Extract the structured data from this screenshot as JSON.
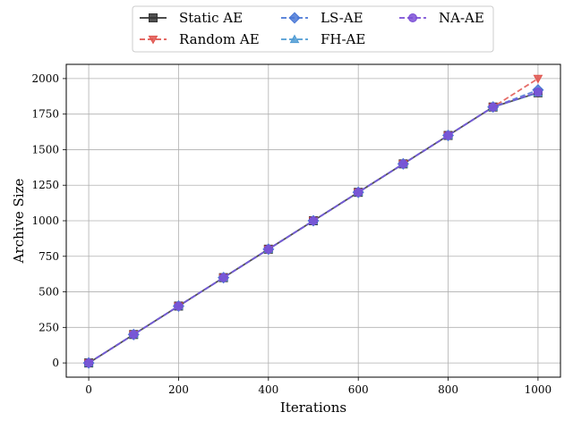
{
  "chart_data": {
    "type": "line",
    "title": "",
    "xlabel": "Iterations",
    "ylabel": "Archive Size",
    "xlim": [
      -50,
      1050
    ],
    "ylim": [
      -100,
      2100
    ],
    "xticks": [
      0,
      200,
      400,
      600,
      800,
      1000
    ],
    "yticks": [
      0,
      250,
      500,
      750,
      1000,
      1250,
      1500,
      1750,
      2000
    ],
    "grid": true,
    "legend_position": "top-center",
    "x": [
      0,
      100,
      200,
      300,
      400,
      500,
      600,
      700,
      800,
      900,
      1000
    ],
    "series": [
      {
        "name": "Static AE",
        "color": "#333333",
        "linestyle": "solid",
        "marker": "square",
        "values": [
          0,
          200,
          400,
          600,
          800,
          1000,
          1200,
          1400,
          1600,
          1800,
          1900
        ]
      },
      {
        "name": "Random AE",
        "color": "#e0544e",
        "linestyle": "dashed",
        "marker": "triangle-down",
        "values": [
          0,
          200,
          400,
          600,
          800,
          1000,
          1200,
          1400,
          1600,
          1800,
          2000
        ]
      },
      {
        "name": "LS-AE",
        "color": "#4a78d6",
        "linestyle": "dashed",
        "marker": "diamond",
        "values": [
          0,
          200,
          400,
          600,
          800,
          1000,
          1200,
          1400,
          1600,
          1800,
          1920
        ]
      },
      {
        "name": "FH-AE",
        "color": "#4f9bd4",
        "linestyle": "dashed",
        "marker": "triangle-up",
        "values": [
          0,
          200,
          400,
          600,
          800,
          1000,
          1200,
          1400,
          1600,
          1800,
          1900
        ]
      },
      {
        "name": "NA-AE",
        "color": "#7b4fd6",
        "linestyle": "dashed",
        "marker": "circle",
        "values": [
          0,
          200,
          400,
          600,
          800,
          1000,
          1200,
          1400,
          1600,
          1800,
          1905
        ]
      }
    ]
  }
}
